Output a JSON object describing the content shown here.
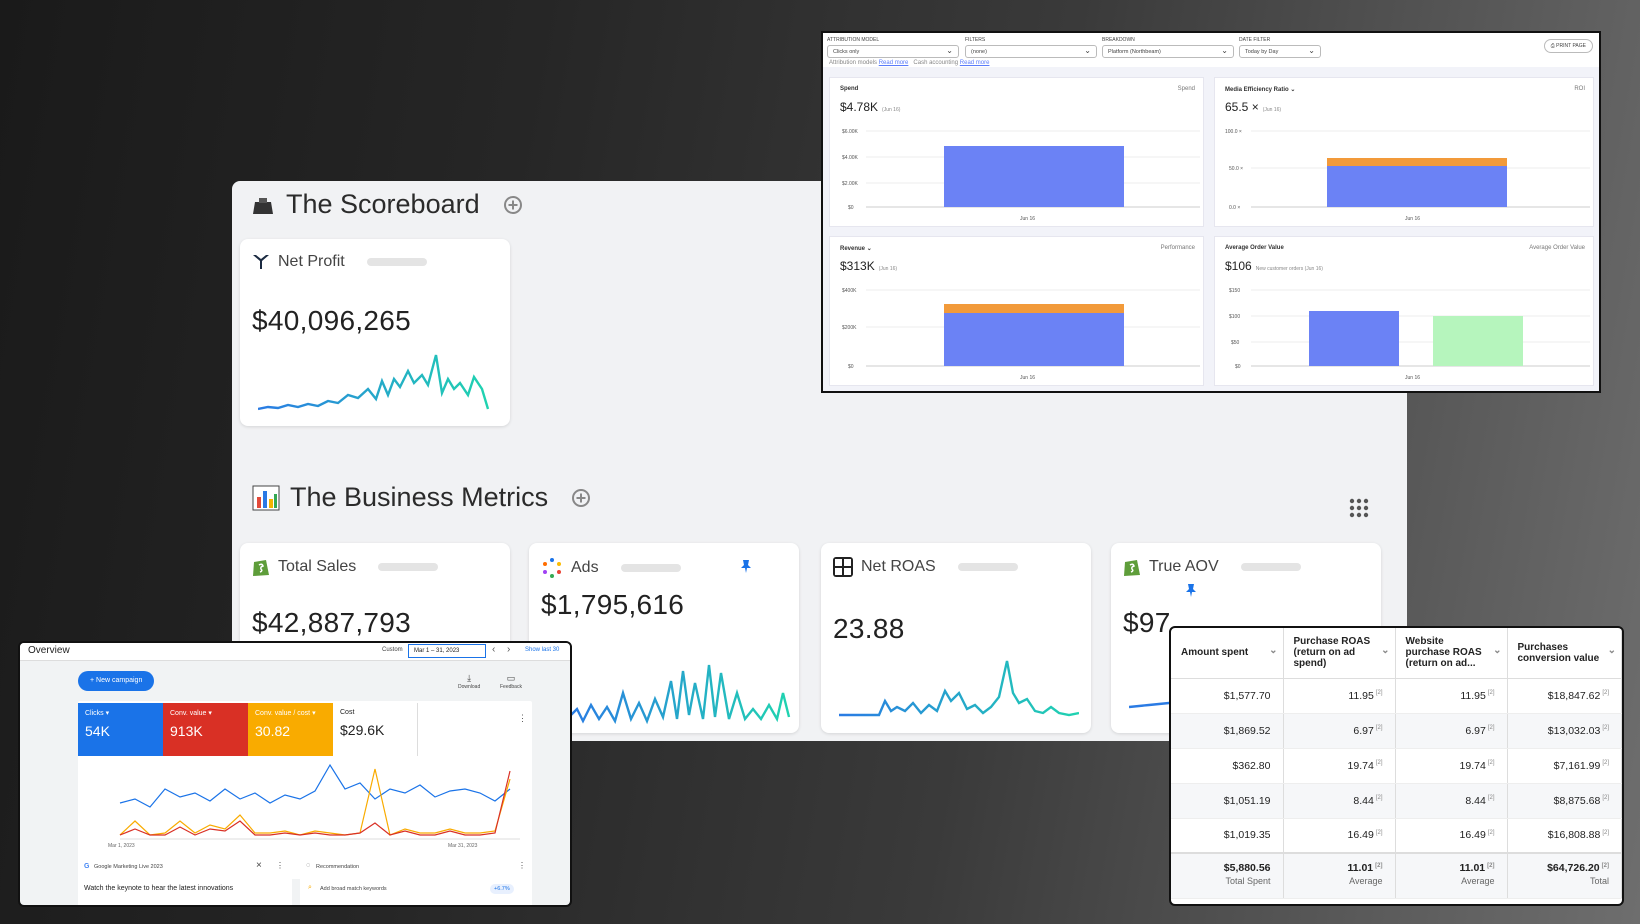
{
  "scoreboard": {
    "title": "The Scoreboard",
    "net_profit": {
      "label": "Net Profit",
      "value": "$40,096,265"
    }
  },
  "business_metrics": {
    "title": "The Business Metrics",
    "cards": [
      {
        "label": "Total Sales",
        "value": "$42,887,793"
      },
      {
        "label": "Ads",
        "value": "$1,795,616"
      },
      {
        "label": "Net ROAS",
        "value": "23.88"
      },
      {
        "label": "True AOV",
        "value": "$97"
      }
    ]
  },
  "attribution": {
    "filters": [
      {
        "label": "ATTRIBUTION MODEL",
        "value": "Clicks only"
      },
      {
        "label": "FILTERS",
        "value": "(none)"
      },
      {
        "label": "BREAKDOWN",
        "value": "Platform (Northbeam)"
      },
      {
        "label": "DATE FILTER",
        "value": "Today by Day"
      }
    ],
    "print_label": "PRINT PAGE",
    "note1": "Attribution models",
    "note_link": "Read more",
    "note2": "Cash accounting",
    "panels": [
      {
        "title": "Spend",
        "right": "Spend",
        "value": "$4.78K",
        "sub": "(Jun 16)",
        "ticks": [
          "$6.00K",
          "$4.00K",
          "$2.00K",
          "$0"
        ],
        "xlabel": "Jun 16"
      },
      {
        "title": "Media Efficiency Ratio",
        "right": "ROI",
        "value": "65.5 ×",
        "sub": "(Jun 16)",
        "ticks": [
          "100.0 ×",
          "50.0 ×",
          "0.0 ×"
        ],
        "xlabel": "Jun 16"
      },
      {
        "title": "Revenue",
        "right": "Performance",
        "value": "$313K",
        "sub": "(Jun 16)",
        "ticks": [
          "$400K",
          "$200K",
          "$0"
        ],
        "xlabel": "Jun 16"
      },
      {
        "title": "Average Order Value",
        "right": "Average Order Value",
        "value": "$106",
        "sub": "New customer orders (Jun 16)",
        "ticks": [
          "$150",
          "$100",
          "$50",
          "$0"
        ],
        "xlabel": "Jun 16"
      }
    ]
  },
  "google_ads": {
    "title": "Overview",
    "date_mode": "Custom",
    "date_range": "Mar 1 – 31, 2023",
    "show_last": "Show last 30",
    "new_campaign": "New campaign",
    "download": "Download",
    "feedback": "Feedback",
    "kpis": [
      {
        "label": "Clicks ▾",
        "value": "54K",
        "color": "#1a73e8"
      },
      {
        "label": "Conv. value ▾",
        "value": "913K",
        "color": "#d93025"
      },
      {
        "label": "Conv. value / cost ▾",
        "value": "30.82",
        "color": "#f9ab00"
      },
      {
        "label": "Cost",
        "value": "$29.6K",
        "color": "#ffffff"
      }
    ],
    "x_start": "Mar 1, 2023",
    "x_end": "Mar 31, 2023",
    "card1_title": "Google Marketing Live 2023",
    "card1_body": "Watch the keynote to hear the latest innovations",
    "card2_title": "Recommendation",
    "card2_body": "Add broad match keywords",
    "card2_badge": "+6.7%"
  },
  "table": {
    "headers": [
      "Amount spent",
      "Purchase ROAS (return on ad spend)",
      "Website purchase ROAS (return on ad...",
      "Purchases conversion value"
    ],
    "rows": [
      [
        "$1,577.70",
        "11.95",
        "11.95",
        "$18,847.62"
      ],
      [
        "$1,869.52",
        "6.97",
        "6.97",
        "$13,032.03"
      ],
      [
        "$362.80",
        "19.74",
        "19.74",
        "$7,161.99"
      ],
      [
        "$1,051.19",
        "8.44",
        "8.44",
        "$8,875.68"
      ],
      [
        "$1,019.35",
        "16.49",
        "16.49",
        "$16,808.88"
      ]
    ],
    "totals": [
      "$5,880.56",
      "11.01",
      "11.01",
      "$64,726.20"
    ],
    "total_labels": [
      "Total Spent",
      "Average",
      "Average",
      "Total"
    ]
  }
}
